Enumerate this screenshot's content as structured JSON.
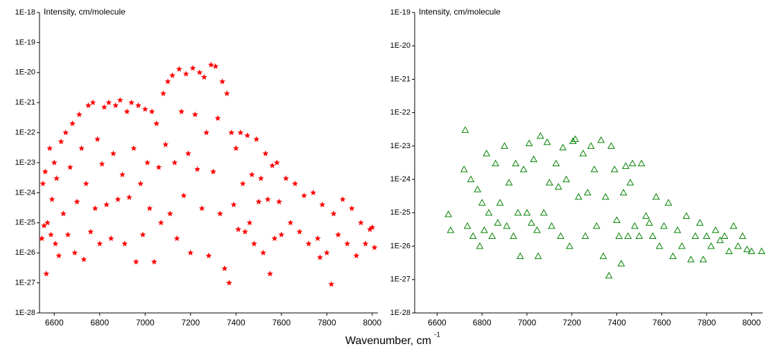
{
  "xlabel": "Wavenumber, cm",
  "xlabel_superscript": "-1",
  "chart_data": [
    {
      "type": "scatter",
      "ylabel": "Intensity, cm/molecule",
      "ylog": true,
      "marker": "star",
      "color": "#ff0000",
      "xlim": [
        6535,
        8025
      ],
      "ylim": [
        1e-28,
        1e-18
      ],
      "xticks": [
        6600,
        6800,
        7000,
        7200,
        7400,
        7600,
        7800,
        8000
      ],
      "yticks": [
        {
          "value": 1e-28,
          "label": "1E-28"
        },
        {
          "value": 1e-27,
          "label": "1E-27"
        },
        {
          "value": 1e-26,
          "label": "1E-26"
        },
        {
          "value": 1e-25,
          "label": "1E-25"
        },
        {
          "value": 1e-24,
          "label": "1E-24"
        },
        {
          "value": 1e-23,
          "label": "1E-23"
        },
        {
          "value": 1e-22,
          "label": "1E-22"
        },
        {
          "value": 1e-21,
          "label": "1E-21"
        },
        {
          "value": 1e-20,
          "label": "1E-20"
        },
        {
          "value": 1e-19,
          "label": "1E-19"
        },
        {
          "value": 1e-18,
          "label": "1E-18"
        }
      ],
      "x": [
        6545,
        6550,
        6555,
        6560,
        6565,
        6570,
        6580,
        6585,
        6590,
        6600,
        6605,
        6610,
        6620,
        6630,
        6640,
        6650,
        6660,
        6670,
        6680,
        6690,
        6700,
        6710,
        6720,
        6730,
        6740,
        6750,
        6760,
        6770,
        6780,
        6790,
        6800,
        6810,
        6820,
        6830,
        6840,
        6850,
        6860,
        6870,
        6880,
        6890,
        6900,
        6910,
        6920,
        6930,
        6940,
        6950,
        6960,
        6970,
        6980,
        6990,
        7000,
        7010,
        7020,
        7030,
        7040,
        7050,
        7060,
        7070,
        7080,
        7090,
        7100,
        7110,
        7120,
        7130,
        7140,
        7150,
        7160,
        7170,
        7180,
        7190,
        7200,
        7210,
        7220,
        7230,
        7240,
        7250,
        7260,
        7270,
        7280,
        7290,
        7300,
        7310,
        7320,
        7330,
        7340,
        7350,
        7360,
        7370,
        7380,
        7390,
        7400,
        7410,
        7420,
        7430,
        7440,
        7450,
        7460,
        7470,
        7480,
        7490,
        7500,
        7510,
        7520,
        7530,
        7540,
        7550,
        7560,
        7570,
        7580,
        7590,
        7600,
        7620,
        7640,
        7660,
        7680,
        7700,
        7720,
        7740,
        7760,
        7770,
        7780,
        7800,
        7820,
        7830,
        7850,
        7870,
        7890,
        7910,
        7930,
        7950,
        7970,
        7990,
        8000,
        8010
      ],
      "values": [
        3e-26,
        2e-24,
        8e-26,
        5e-24,
        2e-27,
        1e-25,
        3e-23,
        4e-26,
        6e-25,
        1e-23,
        2e-26,
        3e-24,
        8e-27,
        5e-23,
        2e-25,
        1e-22,
        4e-26,
        7e-24,
        2e-22,
        1e-26,
        5e-25,
        4e-22,
        3e-23,
        6e-27,
        2e-24,
        8e-22,
        5e-26,
        1e-21,
        3e-25,
        6e-23,
        2e-26,
        9e-24,
        7e-22,
        4e-25,
        1e-21,
        3e-26,
        2e-23,
        8e-22,
        6e-25,
        1.2e-21,
        4e-24,
        2e-26,
        5e-22,
        7e-25,
        1e-21,
        3e-23,
        5e-27,
        8e-22,
        2e-24,
        4e-26,
        6e-22,
        1e-23,
        3e-25,
        5e-22,
        5e-27,
        2e-22,
        7e-24,
        1e-25,
        2e-21,
        4e-23,
        5e-21,
        2e-25,
        8e-21,
        1e-23,
        3e-26,
        1.3e-20,
        5e-22,
        8e-25,
        9e-21,
        2e-23,
        1e-26,
        1.4e-20,
        4e-22,
        6e-24,
        1e-20,
        3e-25,
        7e-21,
        1e-22,
        8e-27,
        1.8e-20,
        5e-24,
        1.6e-20,
        3e-22,
        2e-25,
        5e-21,
        3e-27,
        2e-21,
        1e-27,
        1e-22,
        4e-25,
        3e-23,
        6e-26,
        1e-22,
        2e-24,
        5e-26,
        8e-23,
        1e-25,
        4e-24,
        2e-26,
        6e-23,
        5e-25,
        3e-24,
        1e-26,
        2e-23,
        6e-25,
        2e-27,
        8e-24,
        3e-26,
        1e-23,
        5e-25,
        4e-26,
        3e-24,
        1e-25,
        2e-24,
        5e-26,
        8e-25,
        2e-26,
        1e-24,
        3e-26,
        7e-27,
        4e-25,
        1e-26,
        9e-28,
        2e-25,
        4e-26,
        6e-25,
        2e-26,
        3e-25,
        8e-27,
        1e-25,
        2e-26,
        6e-26,
        7e-26,
        1.5e-26
      ]
    },
    {
      "type": "scatter",
      "ylabel": "Intensity, cm/molecule",
      "ylog": true,
      "marker": "triangle",
      "color": "#008000",
      "xlim": [
        6500,
        8050
      ],
      "ylim": [
        1e-28,
        1e-19
      ],
      "xticks": [
        6600,
        6800,
        7000,
        7200,
        7400,
        7600,
        7800,
        8000
      ],
      "yticks": [
        {
          "value": 1e-28,
          "label": "1E-28"
        },
        {
          "value": 1e-27,
          "label": "1E-27"
        },
        {
          "value": 1e-26,
          "label": "1E-26"
        },
        {
          "value": 1e-25,
          "label": "1E-25"
        },
        {
          "value": 1e-24,
          "label": "1E-24"
        },
        {
          "value": 1e-23,
          "label": "1E-23"
        },
        {
          "value": 1e-22,
          "label": "1E-22"
        },
        {
          "value": 1e-21,
          "label": "1E-21"
        },
        {
          "value": 1e-20,
          "label": "1E-20"
        },
        {
          "value": 1e-19,
          "label": "1E-19"
        }
      ],
      "x": [
        6650,
        6660,
        6720,
        6725,
        6735,
        6750,
        6760,
        6780,
        6790,
        6800,
        6810,
        6820,
        6830,
        6845,
        6860,
        6870,
        6880,
        6900,
        6910,
        6920,
        6940,
        6950,
        6960,
        6970,
        6985,
        7000,
        7010,
        7020,
        7030,
        7045,
        7050,
        7060,
        7075,
        7090,
        7100,
        7110,
        7130,
        7140,
        7150,
        7160,
        7175,
        7190,
        7205,
        7215,
        7230,
        7250,
        7260,
        7270,
        7285,
        7300,
        7310,
        7330,
        7340,
        7350,
        7365,
        7375,
        7390,
        7400,
        7410,
        7420,
        7430,
        7440,
        7450,
        7460,
        7470,
        7480,
        7500,
        7510,
        7530,
        7545,
        7560,
        7575,
        7590,
        7610,
        7630,
        7650,
        7670,
        7690,
        7710,
        7730,
        7750,
        7770,
        7785,
        7800,
        7820,
        7840,
        7860,
        7880,
        7900,
        7920,
        7940,
        7960,
        7980,
        8000,
        8045
      ],
      "values": [
        9e-26,
        3e-26,
        2e-24,
        3e-23,
        4e-26,
        1e-24,
        2e-26,
        5e-25,
        1e-26,
        2e-25,
        3e-26,
        6e-24,
        1e-25,
        2e-26,
        3e-24,
        5e-26,
        2e-25,
        1e-23,
        4e-26,
        8e-25,
        2e-26,
        3e-24,
        1e-25,
        5e-27,
        2e-24,
        1e-25,
        1.2e-23,
        5e-26,
        4e-24,
        3e-26,
        5e-27,
        2e-23,
        1e-25,
        1.3e-23,
        8e-25,
        4e-26,
        3e-24,
        6e-25,
        2e-26,
        9e-24,
        1e-24,
        1e-26,
        1.4e-23,
        1.6e-23,
        3e-25,
        6e-24,
        2e-26,
        4e-25,
        1e-23,
        2e-24,
        4e-26,
        1.5e-23,
        5e-27,
        3e-25,
        1.3e-27,
        1e-23,
        2e-24,
        6e-26,
        2e-26,
        3e-27,
        4e-25,
        2.5e-24,
        2e-26,
        8e-25,
        3e-24,
        4e-26,
        2e-26,
        3e-24,
        8e-26,
        5e-26,
        2e-26,
        3e-25,
        1e-26,
        4e-26,
        2e-25,
        5e-27,
        3e-26,
        1e-26,
        8e-26,
        4e-27,
        2e-26,
        5e-26,
        4e-27,
        2e-26,
        1e-26,
        3e-26,
        1.5e-26,
        2e-26,
        7e-27,
        4e-26,
        1e-26,
        2e-26,
        8e-27,
        7e-27,
        7e-27
      ]
    }
  ]
}
